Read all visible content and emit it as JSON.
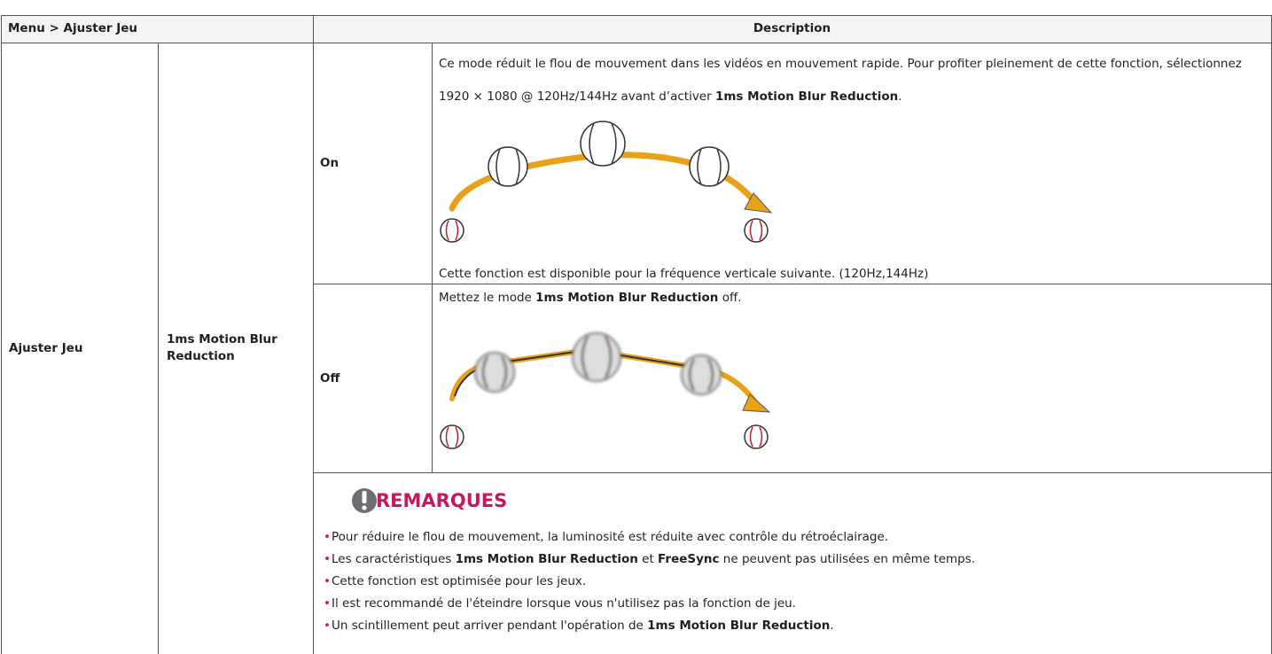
{
  "header": {
    "menu": "Menu > Ajuster Jeu",
    "description": "Description"
  },
  "row": {
    "menu_item": "Ajuster Jeu",
    "option": "1ms Motion Blur Reduction"
  },
  "settings": [
    {
      "label": "On",
      "text": [
        "Ce mode réduit le flou de mouvement dans les vidéos en mouvement rapide. Pour profiter pleinement de cette fonction, sélectionnez 1920 × 1080 @ 120Hz/144Hz avant d’activer ",
        "1ms Motion Blur Reduction",
        "."
      ],
      "note": "Cette fonction est disponible pour la fréquence verticale suivante. (120Hz,144Hz)"
    },
    {
      "label": "Off",
      "text": [
        "Mettez le mode ",
        "1ms Motion Blur Reduction",
        " off."
      ]
    }
  ],
  "notes": {
    "title": "REMARQUES",
    "items": [
      [
        "Pour réduire le flou de mouvement, la luminosité est réduite avec contrôle du rétroéclairage."
      ],
      [
        "Les caractéristiques ",
        "1ms Motion Blur Reduction",
        " et ",
        "FreeSync",
        " ne peuvent pas utilisées en même temps."
      ],
      [
        "Cette fonction est optimisée pour les jeux."
      ],
      [
        "Il est recommandé de l'éteindre lorsque vous n'utilisez pas la fonction de jeu."
      ],
      [
        "Un scintillement peut arriver pendant l'opération de ",
        "1ms Motion Blur Reduction",
        "."
      ]
    ]
  }
}
